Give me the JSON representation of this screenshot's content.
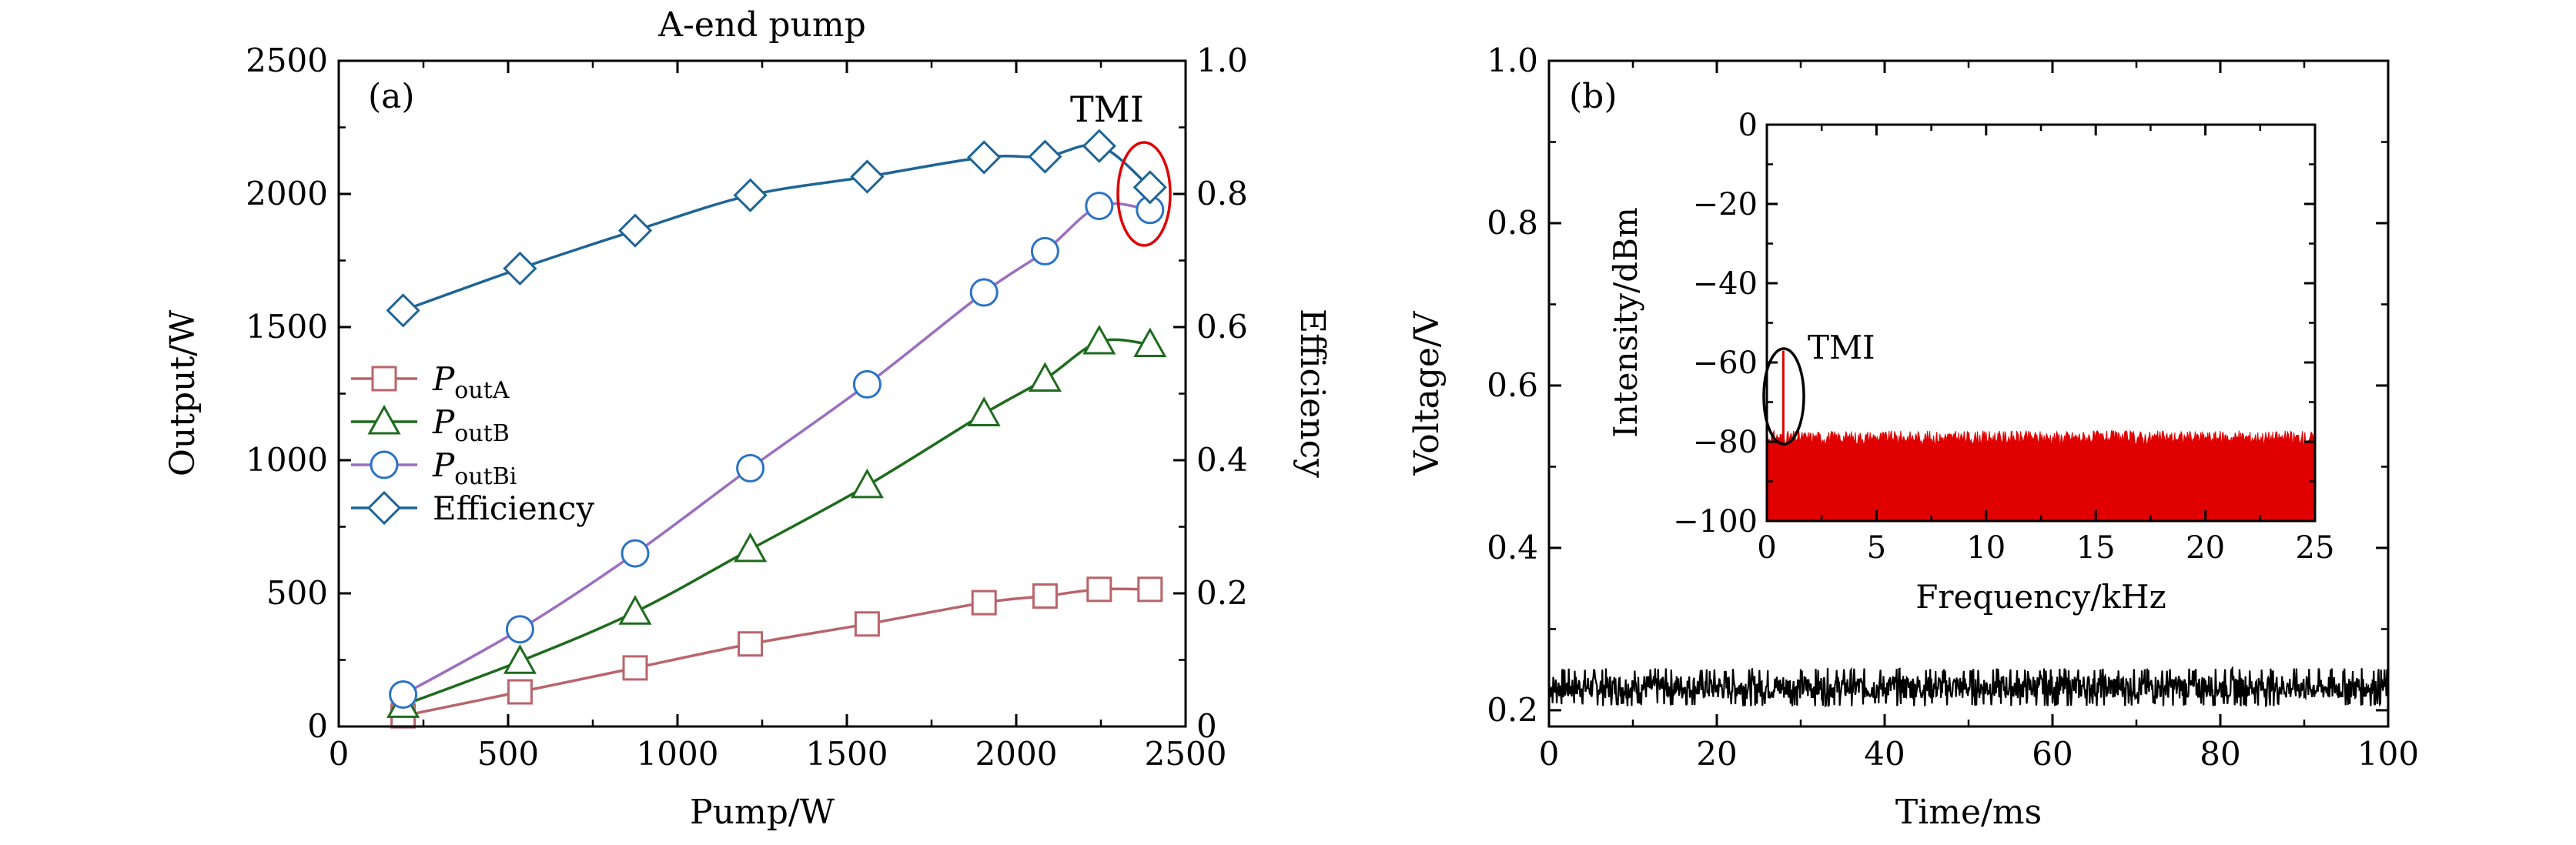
{
  "colors": {
    "poutA": "#b9646a",
    "poutB": "#1e6b1e",
    "poutBi_line": "#9b6fbf",
    "poutBi_marker": "#2a72c6",
    "efficiency": "#1e6496",
    "tmi": "#e00000",
    "axis": "#000000"
  },
  "chart_data": [
    {
      "panel": "(a)",
      "type": "line",
      "title": "A-end pump",
      "xlabel": "Pump/W",
      "ylabel": "Output/W",
      "y2label": "Efficiency",
      "xlim": [
        0,
        2500
      ],
      "ylim": [
        0,
        2500
      ],
      "y2lim": [
        0,
        1.0
      ],
      "xticks": [
        "0",
        "500",
        "1000",
        "1500",
        "2000",
        "2500"
      ],
      "yticks": [
        "0",
        "500",
        "1000",
        "1500",
        "2000",
        "2500"
      ],
      "y2ticks": [
        "0",
        "0.2",
        "0.4",
        "0.6",
        "0.8",
        "1.0"
      ],
      "x": [
        190,
        535,
        875,
        1215,
        1560,
        1905,
        2085,
        2245,
        2395
      ],
      "series": [
        {
          "key": "poutA",
          "name_main": "P",
          "name_sub": "outA",
          "marker": "square",
          "axis": "left",
          "values": [
            40,
            130,
            220,
            310,
            385,
            465,
            490,
            515,
            515
          ]
        },
        {
          "key": "poutB",
          "name_main": "P",
          "name_sub": "outB",
          "marker": "triangle",
          "axis": "left",
          "values": [
            80,
            245,
            430,
            665,
            905,
            1175,
            1305,
            1445,
            1435
          ]
        },
        {
          "key": "poutBi",
          "name_main": "P",
          "name_sub": "outBi",
          "marker": "circle",
          "axis": "left",
          "values": [
            120,
            365,
            650,
            970,
            1285,
            1630,
            1785,
            1955,
            1940
          ]
        },
        {
          "key": "efficiency",
          "name_main": "Efficiency",
          "name_sub": "",
          "marker": "diamond",
          "axis": "right",
          "values": [
            0.625,
            0.688,
            0.745,
            0.798,
            0.826,
            0.855,
            0.856,
            0.872,
            0.81
          ]
        }
      ],
      "legend_position": "center-left",
      "annotation": "TMI"
    },
    {
      "panel": "(b)",
      "type": "line",
      "xlabel": "Time/ms",
      "ylabel": "Voltage/V",
      "xlim": [
        0,
        100
      ],
      "ylim": [
        0.18,
        1.0
      ],
      "xticks": [
        "0",
        "20",
        "40",
        "60",
        "80",
        "100"
      ],
      "yticks": [
        "0.2",
        "0.4",
        "0.6",
        "0.8",
        "1.0"
      ],
      "signal": {
        "mean": 0.226,
        "band": [
          0.205,
          0.252
        ]
      },
      "inset": {
        "type": "area",
        "xlabel": "Frequency/kHz",
        "ylabel": "Intensity/dBm",
        "xlim": [
          0,
          25
        ],
        "ylim": [
          -100,
          0
        ],
        "xticks": [
          "0",
          "5",
          "10",
          "15",
          "20",
          "25"
        ],
        "yticks": [
          "0",
          "−20",
          "−40",
          "−60",
          "−80",
          "−100"
        ],
        "noise_floor_dbm": -79,
        "tmi_peak": {
          "freq_khz": 0.75,
          "dbm": -57
        },
        "annotation": "TMI"
      }
    }
  ]
}
